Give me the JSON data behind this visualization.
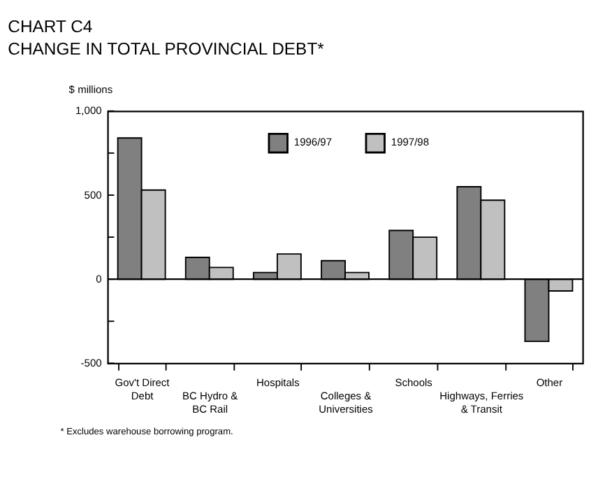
{
  "chart_data": {
    "type": "bar",
    "title": "CHART C4",
    "subtitle": "CHANGE IN TOTAL PROVINCIAL DEBT*",
    "ylabel": "$ millions",
    "categories": [
      "Gov't Direct\nDebt",
      "BC Hydro &\nBC Rail",
      "Hospitals",
      "Colleges &\nUniversities",
      "Schools",
      "Highways, Ferries\n& Transit",
      "Other"
    ],
    "series": [
      {
        "name": "1996/97",
        "color": "#808080",
        "values": [
          840,
          130,
          40,
          110,
          290,
          550,
          -370
        ]
      },
      {
        "name": "1997/98",
        "color": "#c0c0c0",
        "values": [
          530,
          70,
          150,
          40,
          250,
          470,
          -70
        ]
      }
    ],
    "ylim": [
      -500,
      1000
    ],
    "yticks": [
      -500,
      {
        "value": -250,
        "label": null
      },
      0,
      {
        "value": 250,
        "label": null
      },
      500,
      {
        "value": 750,
        "label": null
      },
      {
        "value": 1000,
        "label": "1,000"
      }
    ],
    "ref_lines": [
      {
        "axis": "y",
        "value": 0,
        "color": "#000000"
      }
    ],
    "annotations": [
      "* Excludes warehouse borrowing program."
    ],
    "legend": "top"
  }
}
